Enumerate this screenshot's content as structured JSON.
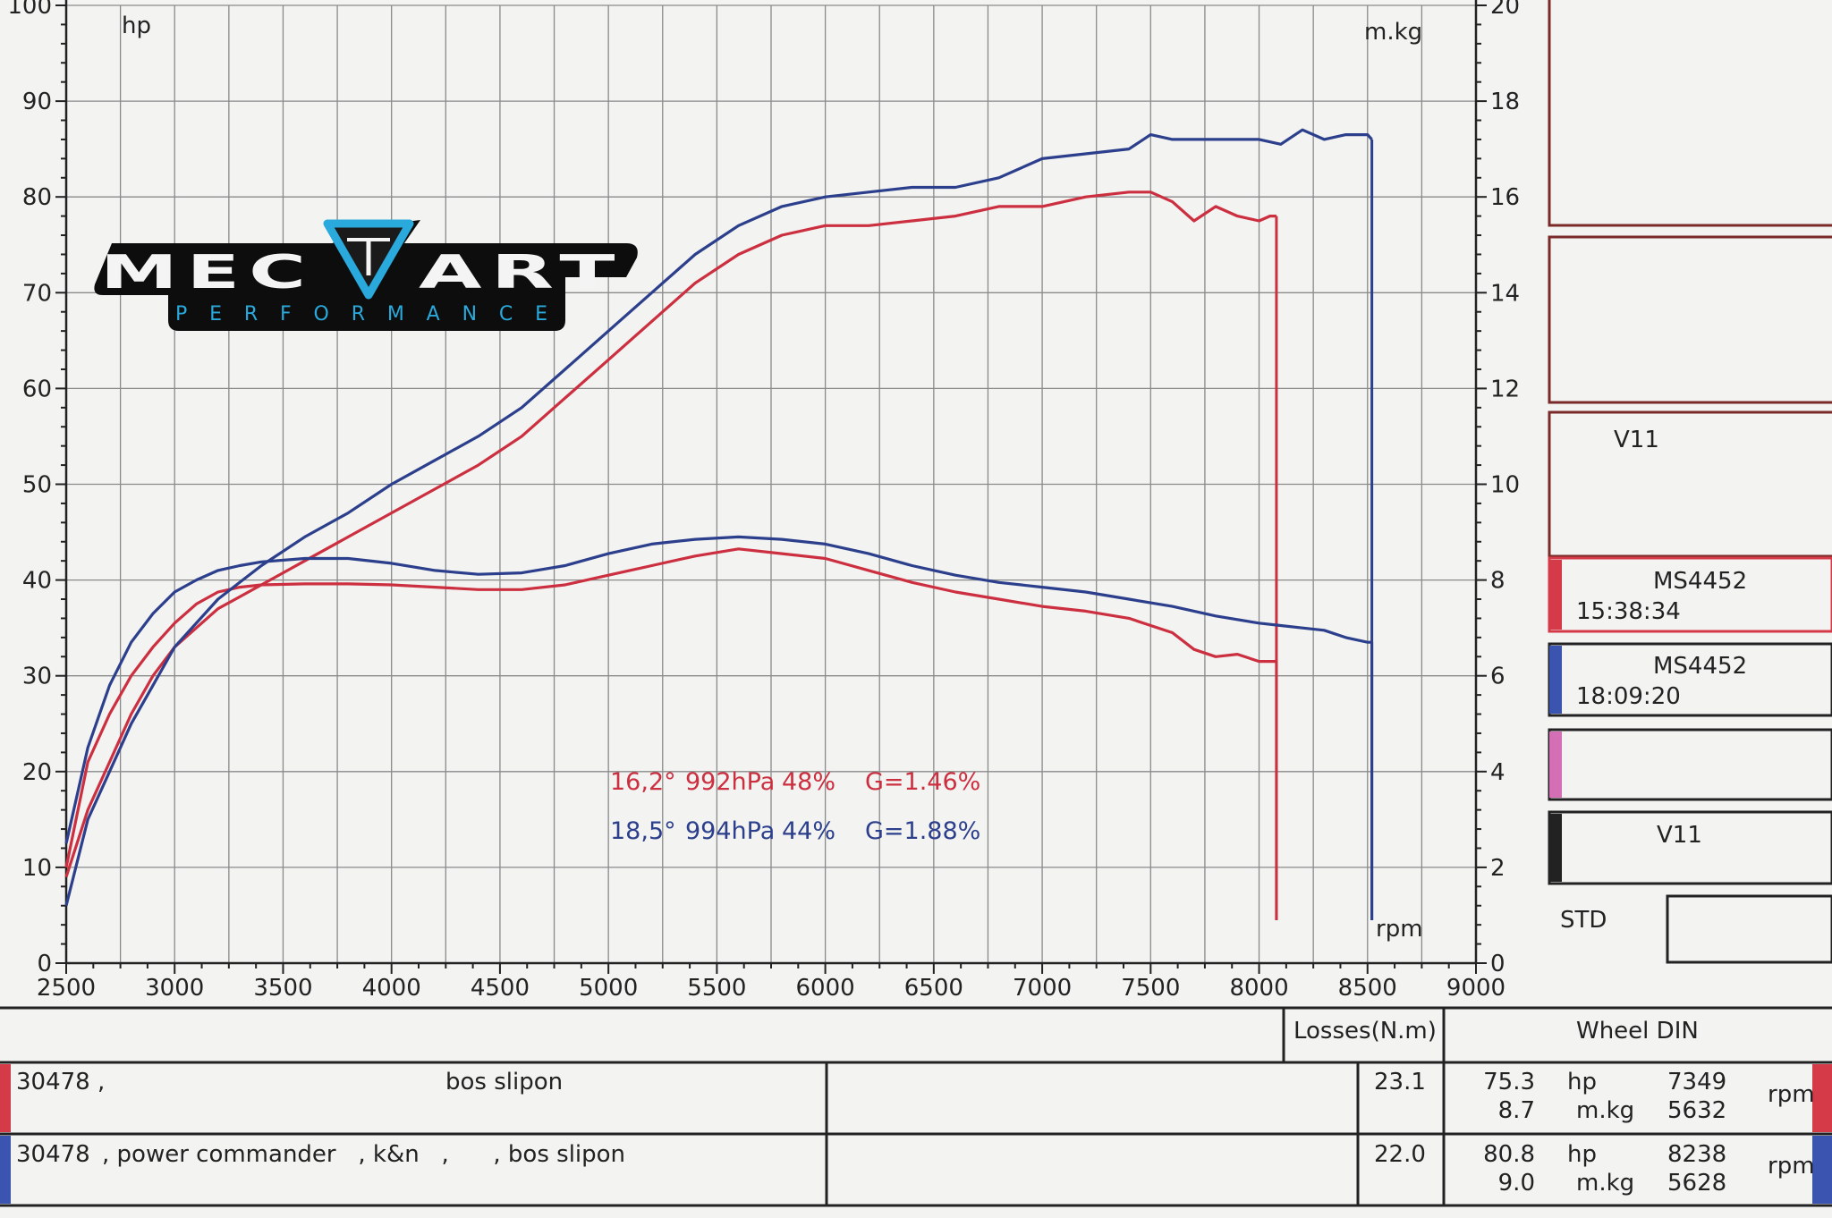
{
  "chart_data": {
    "type": "line",
    "x_axis": {
      "label": "rpm",
      "range": [
        2500,
        9000
      ],
      "ticks": [
        2500,
        3000,
        3500,
        4000,
        4500,
        5000,
        5500,
        6000,
        6500,
        7000,
        7500,
        8000,
        8500,
        9000
      ]
    },
    "y_left": {
      "label": "hp",
      "range": [
        0,
        100
      ],
      "ticks": [
        0,
        10,
        20,
        30,
        40,
        50,
        60,
        70,
        80,
        90,
        100
      ]
    },
    "y_right": {
      "label": "m.kg",
      "range": [
        0,
        20
      ],
      "ticks": [
        0,
        2,
        4,
        6,
        8,
        10,
        12,
        14,
        16,
        18,
        20
      ]
    },
    "grid": true,
    "series": [
      {
        "color": "#cc2f3f",
        "axis": "left",
        "x": [
          2500,
          2600,
          2700,
          2800,
          2900,
          3000,
          3200,
          3400,
          3600,
          3800,
          4000,
          4200,
          4400,
          4600,
          4800,
          5000,
          5200,
          5400,
          5600,
          5800,
          6000,
          6200,
          6400,
          6600,
          6800,
          7000,
          7200,
          7400,
          7500,
          7600,
          7700,
          7800,
          7900,
          8000,
          8050,
          8080
        ],
        "values": [
          9,
          16,
          21,
          26,
          30,
          33,
          37,
          39.5,
          42,
          44.5,
          47,
          49.5,
          52,
          55,
          59,
          63,
          67,
          71,
          74,
          76,
          77,
          77,
          77.5,
          78,
          79,
          79,
          80,
          80.5,
          80.5,
          79.5,
          77.5,
          79,
          78,
          77.5,
          78,
          78
        ]
      },
      {
        "color": "#cc2f3f",
        "axis": "right",
        "x": [
          2500,
          2600,
          2700,
          2800,
          2900,
          3000,
          3100,
          3200,
          3300,
          3400,
          3600,
          3800,
          4000,
          4200,
          4400,
          4600,
          4800,
          5000,
          5200,
          5400,
          5600,
          5800,
          6000,
          6200,
          6400,
          6600,
          6800,
          7000,
          7200,
          7400,
          7600,
          7700,
          7800,
          7900,
          8000,
          8050,
          8080
        ],
        "values": [
          2,
          4.2,
          5.2,
          6,
          6.6,
          7.1,
          7.5,
          7.75,
          7.85,
          7.9,
          7.92,
          7.92,
          7.9,
          7.85,
          7.8,
          7.8,
          7.9,
          8.1,
          8.3,
          8.5,
          8.65,
          8.55,
          8.45,
          8.2,
          7.95,
          7.75,
          7.6,
          7.45,
          7.35,
          7.2,
          6.9,
          6.55,
          6.4,
          6.45,
          6.3,
          6.3,
          6.3
        ]
      },
      {
        "color": "#2c3f8c",
        "axis": "left",
        "x": [
          2500,
          2600,
          2700,
          2800,
          2900,
          3000,
          3200,
          3400,
          3600,
          3800,
          4000,
          4200,
          4400,
          4600,
          4800,
          5000,
          5200,
          5400,
          5600,
          5800,
          6000,
          6200,
          6400,
          6600,
          6800,
          7000,
          7200,
          7400,
          7500,
          7600,
          7800,
          8000,
          8100,
          8200,
          8300,
          8400,
          8500,
          8520
        ],
        "values": [
          6,
          15,
          20,
          25,
          29,
          33,
          38,
          41.5,
          44.5,
          47,
          50,
          52.5,
          55,
          58,
          62,
          66,
          70,
          74,
          77,
          79,
          80,
          80.5,
          81,
          81,
          82,
          84,
          84.5,
          85,
          86.5,
          86,
          86,
          86,
          85.5,
          87,
          86,
          86.5,
          86.5,
          86
        ]
      },
      {
        "color": "#2c3f8c",
        "axis": "right",
        "x": [
          2500,
          2600,
          2700,
          2800,
          2900,
          3000,
          3100,
          3200,
          3300,
          3400,
          3600,
          3800,
          4000,
          4200,
          4400,
          4600,
          4800,
          5000,
          5200,
          5400,
          5600,
          5800,
          6000,
          6200,
          6400,
          6600,
          6800,
          7000,
          7200,
          7400,
          7600,
          7800,
          8000,
          8100,
          8200,
          8300,
          8400,
          8500,
          8520
        ],
        "values": [
          2.5,
          4.5,
          5.8,
          6.7,
          7.3,
          7.75,
          8.0,
          8.2,
          8.3,
          8.38,
          8.45,
          8.45,
          8.35,
          8.2,
          8.12,
          8.15,
          8.3,
          8.55,
          8.75,
          8.85,
          8.9,
          8.85,
          8.75,
          8.55,
          8.3,
          8.1,
          7.95,
          7.85,
          7.75,
          7.6,
          7.45,
          7.25,
          7.1,
          7.05,
          7.0,
          6.95,
          6.8,
          6.7,
          6.7
        ]
      }
    ],
    "annotations": [
      {
        "color": "#cc2f3f",
        "parts": [
          "16,2°",
          "992hPa",
          "48%",
          "G=1.46%"
        ]
      },
      {
        "color": "#2c3f8c",
        "parts": [
          "18,5°",
          "994hPa",
          "44%",
          "G=1.88%"
        ]
      }
    ]
  },
  "logo": {
    "name": "MEC ART",
    "tagline": "PERFORMANCE"
  },
  "side_panel": [
    {
      "accent": "none",
      "lines": []
    },
    {
      "accent": "none",
      "lines": []
    },
    {
      "accent": "none",
      "lines": [
        "V11"
      ]
    },
    {
      "accent": "#d43a48",
      "lines": [
        "MS4452",
        "15:38:34"
      ]
    },
    {
      "accent": "#3a54b0",
      "lines": [
        "MS4452",
        "18:09:20"
      ]
    },
    {
      "accent": "#d46fb6",
      "lines": []
    },
    {
      "accent": "#222222",
      "lines": [
        "V11"
      ]
    }
  ],
  "std_label": "STD",
  "table": {
    "headers": {
      "losses": "Losses(N.m)",
      "wheel": "Wheel DIN"
    },
    "rows": [
      {
        "accent": "#d43a48",
        "run": "30478 ,",
        "desc": "bos slipon",
        "losses": "23.1",
        "hp": "75.3",
        "hp_unit": "hp",
        "hp_rpm": "7349",
        "torque": "8.7",
        "torque_unit": "m.kg",
        "torque_rpm": "5632",
        "rpm_label": "rpm"
      },
      {
        "accent": "#3a54b0",
        "run": "30478",
        "desc": ", power commander   , k&n   ,      , bos slipon",
        "losses": "22.0",
        "hp": "80.8",
        "hp_unit": "hp",
        "hp_rpm": "8238",
        "torque": "9.0",
        "torque_unit": "m.kg",
        "torque_rpm": "5628",
        "rpm_label": "rpm"
      }
    ]
  }
}
